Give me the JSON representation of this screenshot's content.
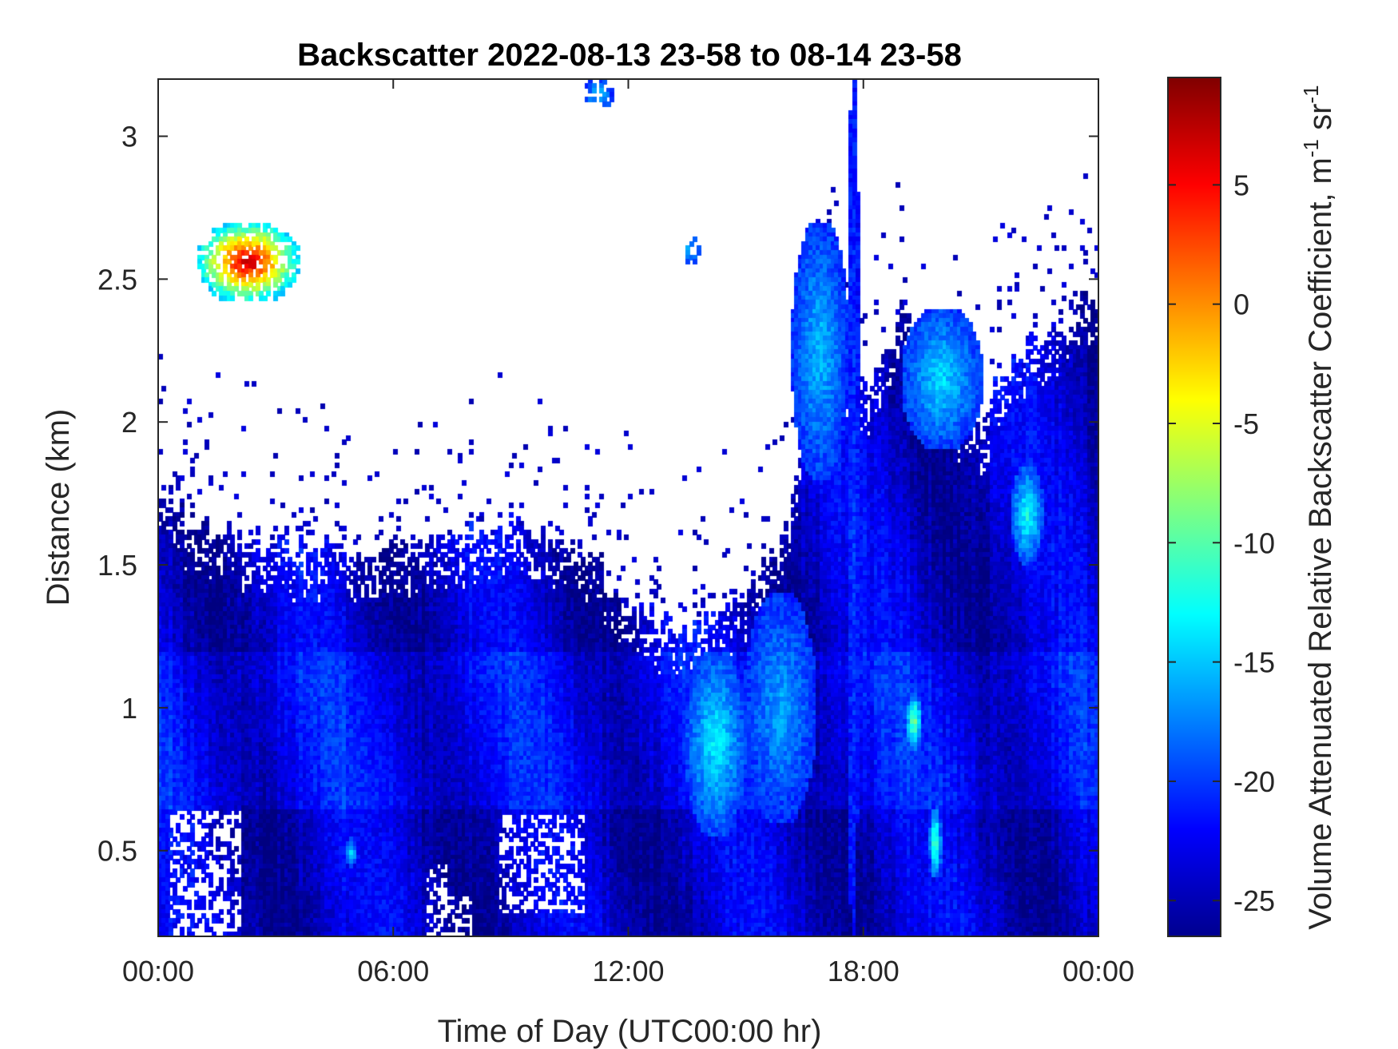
{
  "chart_data": {
    "type": "heatmap",
    "title": "Backscatter 2022-08-13 23-58 to 08-14 23-58",
    "xlabel": "Time of Day (UTC00:00 hr)",
    "ylabel": "Distance (km)",
    "colorbar_label_main": "Volume Attenuated Relative Backscatter Coefficient, m",
    "colorbar_label_sup1": "-1",
    "colorbar_label_mid": " sr",
    "colorbar_label_sup2": "-1",
    "x_unit": "hours UTC",
    "xlim": [
      0,
      24
    ],
    "ylim": [
      0.2,
      3.2
    ],
    "clim": [
      -26.5,
      9.5
    ],
    "colormap": "jet",
    "x_ticks": [
      {
        "value": 0,
        "label": "00:00"
      },
      {
        "value": 6,
        "label": "06:00"
      },
      {
        "value": 12,
        "label": "12:00"
      },
      {
        "value": 18,
        "label": "18:00"
      },
      {
        "value": 24,
        "label": "00:00"
      }
    ],
    "y_ticks": [
      {
        "value": 0.5,
        "label": "0.5"
      },
      {
        "value": 1,
        "label": "1"
      },
      {
        "value": 1.5,
        "label": "1.5"
      },
      {
        "value": 2,
        "label": "2"
      },
      {
        "value": 2.5,
        "label": "2.5"
      },
      {
        "value": 3,
        "label": "3"
      }
    ],
    "colorbar_ticks": [
      {
        "value": -25,
        "label": "-25"
      },
      {
        "value": -20,
        "label": "-20"
      },
      {
        "value": -15,
        "label": "-15"
      },
      {
        "value": -10,
        "label": "-10"
      },
      {
        "value": -5,
        "label": "-5"
      },
      {
        "value": 0,
        "label": "0"
      },
      {
        "value": 5,
        "label": "5"
      }
    ],
    "grid": false,
    "signal_top_km": [
      [
        0,
        1.75
      ],
      [
        1,
        1.65
      ],
      [
        2,
        1.6
      ],
      [
        4,
        1.55
      ],
      [
        6,
        1.55
      ],
      [
        8,
        1.6
      ],
      [
        9,
        1.65
      ],
      [
        10,
        1.6
      ],
      [
        11,
        1.55
      ],
      [
        11.5,
        1.45
      ],
      [
        12,
        1.38
      ],
      [
        12.5,
        1.32
      ],
      [
        13,
        1.3
      ],
      [
        13.5,
        1.25
      ],
      [
        14,
        1.3
      ],
      [
        15,
        1.4
      ],
      [
        16,
        1.6
      ],
      [
        16.5,
        2.0
      ],
      [
        17,
        2.5
      ],
      [
        17.5,
        2.2
      ],
      [
        18,
        2.1
      ],
      [
        18.5,
        2.2
      ],
      [
        19,
        2.4
      ],
      [
        20,
        2.1
      ],
      [
        21,
        2.0
      ],
      [
        22,
        2.25
      ],
      [
        23,
        2.35
      ],
      [
        24,
        2.45
      ]
    ],
    "enhanced_features": [
      {
        "desc": "cloud",
        "x": [
          1.0,
          3.6
        ],
        "y": [
          2.42,
          2.7
        ],
        "value_max": 9
      },
      {
        "desc": "aerosol plume",
        "x": [
          13.5,
          15.0
        ],
        "y": [
          0.55,
          1.2
        ],
        "value_max": -13
      },
      {
        "desc": "aerosol plume",
        "x": [
          15.0,
          16.8
        ],
        "y": [
          0.6,
          1.4
        ],
        "value_max": -16
      },
      {
        "desc": "aerosol layer",
        "x": [
          16.2,
          17.6
        ],
        "y": [
          1.8,
          2.7
        ],
        "value_max": -15
      },
      {
        "desc": "vertical column",
        "x": [
          17.6,
          17.9
        ],
        "y": [
          0.2,
          3.2
        ],
        "value_max": -20
      },
      {
        "desc": "aerosol layer",
        "x": [
          19.0,
          21.0
        ],
        "y": [
          1.9,
          2.4
        ],
        "value_max": -14
      },
      {
        "desc": "aerosol layer",
        "x": [
          21.8,
          22.6
        ],
        "y": [
          1.5,
          1.85
        ],
        "value_max": -12
      },
      {
        "desc": "local feature",
        "x": [
          19.1,
          19.5
        ],
        "y": [
          0.85,
          1.05
        ],
        "value_max": -8
      },
      {
        "desc": "local feature",
        "x": [
          19.7,
          20.0
        ],
        "y": [
          0.4,
          0.65
        ],
        "value_max": -9
      },
      {
        "desc": "local feature",
        "x": [
          4.8,
          5.1
        ],
        "y": [
          0.44,
          0.54
        ],
        "value_max": -14
      },
      {
        "desc": "patch",
        "x": [
          10.9,
          11.6
        ],
        "y": [
          3.1,
          3.2
        ],
        "value_max": -14
      },
      {
        "desc": "patch",
        "x": [
          13.4,
          13.8
        ],
        "y": [
          2.55,
          2.65
        ],
        "value_max": -15
      }
    ],
    "no_signal_gaps": [
      {
        "x": [
          0.3,
          2.1
        ],
        "y": [
          0.2,
          0.65
        ]
      },
      {
        "x": [
          7.3,
          8.0
        ],
        "y": [
          0.2,
          0.35
        ]
      },
      {
        "x": [
          8.7,
          10.9
        ],
        "y": [
          0.28,
          0.62
        ]
      },
      {
        "x": [
          6.8,
          7.4
        ],
        "y": [
          0.2,
          0.45
        ]
      }
    ]
  }
}
